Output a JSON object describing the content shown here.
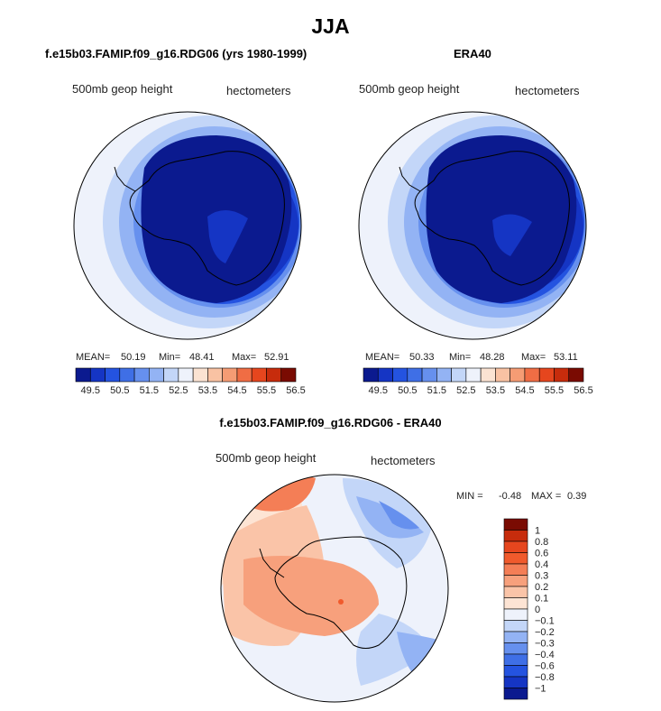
{
  "main_title": "JJA",
  "panels": [
    {
      "title": "f.e15b03.FAMIP.f09_g16.RDG06 (yrs 1980-1999)",
      "variable": "500mb geop height",
      "units": "hectometers",
      "stats": {
        "mean_label": "MEAN=",
        "mean": "50.19",
        "min_label": "Min=",
        "min": "48.41",
        "max_label": "Max=",
        "max": "52.91"
      }
    },
    {
      "title": "ERA40",
      "variable": "500mb geop height",
      "units": "hectometers",
      "stats": {
        "mean_label": "MEAN=",
        "mean": "50.33",
        "min_label": "Min=",
        "min": "48.28",
        "max_label": "Max=",
        "max": "53.11"
      }
    },
    {
      "title": "f.e15b03.FAMIP.f09_g16.RDG06 - ERA40",
      "variable": "500mb geop height",
      "units": "hectometers",
      "stats": {
        "min_label": "MIN =",
        "min": "-0.48",
        "max_label": "MAX =",
        "max": "0.39"
      }
    }
  ],
  "colorbar_horizontal": {
    "labels": [
      "49.5",
      "50.5",
      "51.5",
      "52.5",
      "53.5",
      "54.5",
      "55.5",
      "56.5"
    ],
    "colors": [
      "#0b1a8f",
      "#1535c4",
      "#2453e0",
      "#3f6fe6",
      "#6690ee",
      "#93b3f4",
      "#c3d6f8",
      "#eef2fb",
      "#fbe3d2",
      "#f9c2a3",
      "#f59c74",
      "#f06d44",
      "#e6461e",
      "#c72c0c",
      "#7a0b02"
    ]
  },
  "colorbar_vertical": {
    "labels": [
      "1",
      "0.8",
      "0.6",
      "0.4",
      "0.3",
      "0.2",
      "0.1",
      "0",
      "−0.1",
      "−0.2",
      "−0.3",
      "−0.4",
      "−0.6",
      "−0.8",
      "−1"
    ],
    "colors": [
      "#7a0b02",
      "#c72c0c",
      "#e6461e",
      "#f05a2c",
      "#f47e56",
      "#f7a07c",
      "#fac4a8",
      "#fde4d4",
      "#eef2fb",
      "#c3d6f8",
      "#93b3f4",
      "#6690ee",
      "#3f6fe6",
      "#2453e0",
      "#1535c4",
      "#0b1a8f"
    ]
  },
  "chart_data": [
    {
      "type": "heatmap",
      "title": "f.e15b03.FAMIP.f09_g16.RDG06 (yrs 1980-1999)",
      "variable": "500mb geop height",
      "units": "hectometers",
      "mean": 50.19,
      "min": 48.41,
      "max": 52.91,
      "levels": [
        49.5,
        50.5,
        51.5,
        52.5,
        53.5,
        54.5,
        55.5,
        56.5
      ]
    },
    {
      "type": "heatmap",
      "title": "ERA40",
      "variable": "500mb geop height",
      "units": "hectometers",
      "mean": 50.33,
      "min": 48.28,
      "max": 53.11,
      "levels": [
        49.5,
        50.5,
        51.5,
        52.5,
        53.5,
        54.5,
        55.5,
        56.5
      ]
    },
    {
      "type": "heatmap",
      "title": "f.e15b03.FAMIP.f09_g16.RDG06 - ERA40",
      "variable": "500mb geop height",
      "units": "hectometers",
      "min": -0.48,
      "max": 0.39,
      "levels": [
        1,
        0.8,
        0.6,
        0.4,
        0.3,
        0.2,
        0.1,
        0,
        -0.1,
        -0.2,
        -0.3,
        -0.4,
        -0.6,
        -0.8,
        -1
      ]
    }
  ]
}
